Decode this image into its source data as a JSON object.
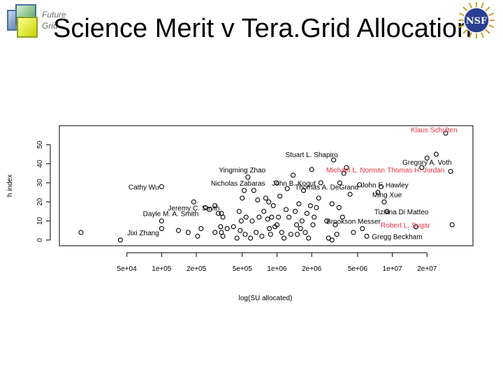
{
  "slide": {
    "title": "Science Merit v Tera.Grid Allocation",
    "logo_text_line1": "Future",
    "logo_text_line2": "Grid",
    "nsf_logo_text": "NSF"
  },
  "colors": {
    "highlight": "#e8323c",
    "text": "#000000",
    "points": "#000000"
  },
  "chart_data": {
    "type": "scatter",
    "xlabel": "log(SU allocated)",
    "ylabel": "h index",
    "x_scale": "log",
    "xlim": [
      13000,
      50000000
    ],
    "ylim": [
      -3,
      60
    ],
    "x_ticks": [
      50000,
      100000,
      200000,
      500000,
      1000000,
      2000000,
      5000000,
      10000000,
      20000000
    ],
    "x_tick_labels": [
      "5e+04",
      "1e+05",
      "2e+05",
      "5e+05",
      "1e+06",
      "2e+06",
      "5e+06",
      "1e+07",
      "2e+07"
    ],
    "y_ticks": [
      0,
      10,
      20,
      30,
      40,
      50
    ],
    "y_tick_labels": [
      "0",
      "10",
      "20",
      "30",
      "40",
      "50"
    ],
    "grid": false,
    "points": [
      [
        20000,
        4
      ],
      [
        44000,
        0
      ],
      [
        100000,
        28
      ],
      [
        100000,
        10
      ],
      [
        100000,
        6
      ],
      [
        140000,
        5
      ],
      [
        170000,
        4
      ],
      [
        190000,
        20
      ],
      [
        205000,
        2
      ],
      [
        240000,
        17
      ],
      [
        260000,
        16
      ],
      [
        290000,
        18
      ],
      [
        310000,
        14
      ],
      [
        330000,
        14
      ],
      [
        340000,
        12
      ],
      [
        325000,
        7
      ],
      [
        220000,
        6
      ],
      [
        290000,
        4
      ],
      [
        330000,
        4
      ],
      [
        340000,
        2
      ],
      [
        370000,
        6
      ],
      [
        420000,
        7
      ],
      [
        450000,
        1
      ],
      [
        470000,
        15
      ],
      [
        490000,
        10
      ],
      [
        480000,
        5
      ],
      [
        500000,
        22
      ],
      [
        520000,
        26
      ],
      [
        530000,
        3
      ],
      [
        540000,
        12
      ],
      [
        560000,
        33
      ],
      [
        590000,
        1
      ],
      [
        610000,
        10
      ],
      [
        630000,
        26
      ],
      [
        660000,
        4
      ],
      [
        680000,
        21
      ],
      [
        700000,
        12
      ],
      [
        740000,
        2
      ],
      [
        770000,
        15
      ],
      [
        800000,
        22
      ],
      [
        830000,
        11
      ],
      [
        850000,
        20
      ],
      [
        860000,
        6
      ],
      [
        880000,
        3
      ],
      [
        900000,
        12
      ],
      [
        930000,
        18
      ],
      [
        960000,
        7
      ],
      [
        990000,
        30
      ],
      [
        1000000,
        8
      ],
      [
        1030000,
        12
      ],
      [
        1060000,
        23
      ],
      [
        1100000,
        4
      ],
      [
        1150000,
        1
      ],
      [
        1200000,
        16
      ],
      [
        1230000,
        27
      ],
      [
        1270000,
        12
      ],
      [
        1320000,
        3
      ],
      [
        1380000,
        34
      ],
      [
        1440000,
        15
      ],
      [
        1480000,
        8
      ],
      [
        1500000,
        3
      ],
      [
        1550000,
        19
      ],
      [
        1600000,
        6
      ],
      [
        1650000,
        10
      ],
      [
        1700000,
        26
      ],
      [
        1760000,
        4
      ],
      [
        1820000,
        14
      ],
      [
        1880000,
        1
      ],
      [
        1950000,
        18
      ],
      [
        2000000,
        37
      ],
      [
        2050000,
        8
      ],
      [
        2100000,
        12
      ],
      [
        2200000,
        17
      ],
      [
        2300000,
        22
      ],
      [
        2400000,
        30
      ],
      [
        2700000,
        10
      ],
      [
        2800000,
        1
      ],
      [
        3000000,
        19
      ],
      [
        3100000,
        42
      ],
      [
        3200000,
        8
      ],
      [
        3300000,
        3
      ],
      [
        3450000,
        17
      ],
      [
        3500000,
        30
      ],
      [
        3700000,
        12
      ],
      [
        3000000,
        0
      ],
      [
        3800000,
        35
      ],
      [
        4000000,
        38
      ],
      [
        4300000,
        24
      ],
      [
        4600000,
        4
      ],
      [
        5200000,
        29
      ],
      [
        5500000,
        6
      ],
      [
        6000000,
        2
      ],
      [
        7500000,
        25
      ],
      [
        8000000,
        28
      ],
      [
        8500000,
        20
      ],
      [
        9000000,
        15
      ],
      [
        16000000,
        7
      ],
      [
        18000000,
        38
      ],
      [
        20000000,
        43
      ],
      [
        24000000,
        45
      ],
      [
        29000000,
        56
      ],
      [
        32000000,
        36
      ],
      [
        33000000,
        8
      ]
    ],
    "annotations": [
      {
        "label": "Klaus Schulten",
        "x": 23000000,
        "y": 58,
        "color": "#e8323c"
      },
      {
        "label": "Stuart L. Shapiro",
        "x": 2000000,
        "y": 45,
        "color": "#000000"
      },
      {
        "label": "Gregory A. Voth",
        "x": 20000000,
        "y": 41,
        "color": "#000000"
      },
      {
        "label": "Yingming Zhao",
        "x": 500000,
        "y": 37,
        "color": "#000000"
      },
      {
        "label": "Michael L. Norman",
        "x": 4800000,
        "y": 37,
        "color": "#e8323c"
      },
      {
        "label": "Thomas H. Jordan",
        "x": 16000000,
        "y": 37,
        "color": "#e8323c"
      },
      {
        "label": "Cathy Wu",
        "x": 70000,
        "y": 28,
        "color": "#000000"
      },
      {
        "label": "Nicholas Zabaras",
        "x": 460000,
        "y": 30,
        "color": "#000000"
      },
      {
        "label": "John B. Kogut",
        "x": 1400000,
        "y": 30,
        "color": "#000000"
      },
      {
        "label": "Thomas A. DeGrand",
        "x": 2700000,
        "y": 28,
        "color": "#000000"
      },
      {
        "label": "John F. Hawley",
        "x": 8600000,
        "y": 29,
        "color": "#000000"
      },
      {
        "label": "Ming Xue",
        "x": 9000000,
        "y": 24,
        "color": "#000000"
      },
      {
        "label": "Jeremy C. Smith",
        "x": 190000,
        "y": 17,
        "color": "#000000"
      },
      {
        "label": "Dayle M. A. Smith",
        "x": 120000,
        "y": 14,
        "color": "#000000"
      },
      {
        "label": "Tiziana Di Matteo",
        "x": 12000000,
        "y": 15,
        "color": "#000000"
      },
      {
        "label": "Brookson Messer",
        "x": 4600000,
        "y": 10,
        "color": "#000000"
      },
      {
        "label": "Robert L. Sugar",
        "x": 13000000,
        "y": 8,
        "color": "#e8323c"
      },
      {
        "label": "Jixi Zhang",
        "x": 34000000,
        "y": 4,
        "color": "#000000",
        "anchor_x": 30000
      },
      {
        "label": "Gregg Beckham",
        "x": 11000000,
        "y": 2,
        "color": "#000000"
      }
    ]
  }
}
